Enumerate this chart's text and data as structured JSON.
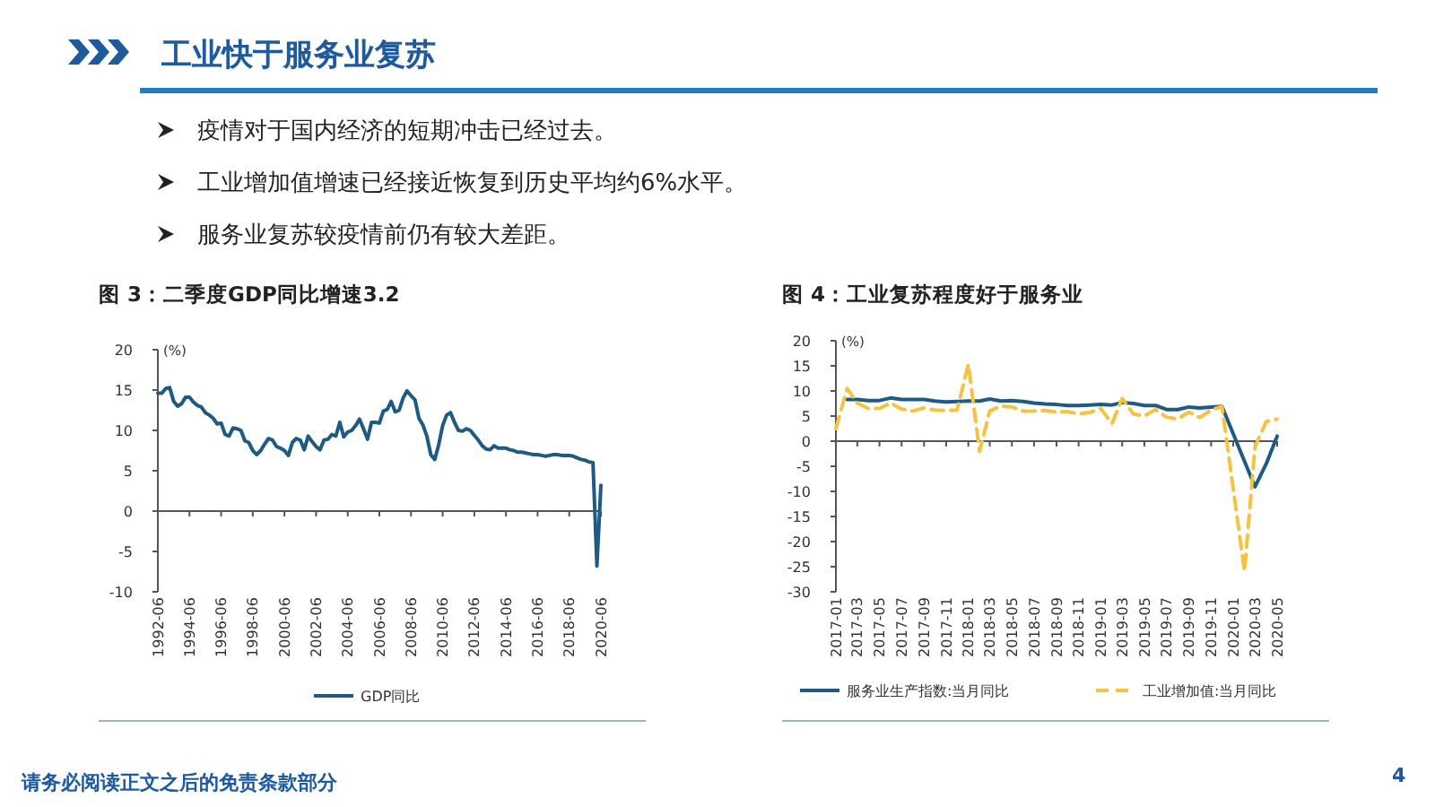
{
  "chart_data": [
    {
      "type": "line",
      "title": "图 3：二季度GDP同比增速3.2",
      "ylabel": "(%)",
      "annotations": [
        "工业快于服务业复苏",
        "疫情对于国内经济的短期冲击已经过去。",
        "工业增加值增速已经接近恢复到历史平均约6%水平。",
        "服务业复苏较疫情前仍有较大差距。",
        "请务必阅读正文之后的免责条款部分",
        "4"
      ],
      "x": [
        "1992-06",
        "1992-09",
        "1992-12",
        "1993-03",
        "1993-06",
        "1993-09",
        "1993-12",
        "1994-03",
        "1994-06",
        "1994-09",
        "1994-12",
        "1995-03",
        "1995-06",
        "1995-09",
        "1995-12",
        "1996-03",
        "1996-06",
        "1996-09",
        "1996-12",
        "1997-03",
        "1997-06",
        "1997-09",
        "1997-12",
        "1998-03",
        "1998-06",
        "1998-09",
        "1998-12",
        "1999-03",
        "1999-06",
        "1999-09",
        "1999-12",
        "2000-03",
        "2000-06",
        "2000-09",
        "2000-12",
        "2001-03",
        "2001-06",
        "2001-09",
        "2001-12",
        "2002-03",
        "2002-06",
        "2002-09",
        "2002-12",
        "2003-03",
        "2003-06",
        "2003-09",
        "2003-12",
        "2004-03",
        "2004-06",
        "2004-09",
        "2004-12",
        "2005-03",
        "2005-06",
        "2005-09",
        "2005-12",
        "2006-03",
        "2006-06",
        "2006-09",
        "2006-12",
        "2007-03",
        "2007-06",
        "2007-09",
        "2007-12",
        "2008-03",
        "2008-06",
        "2008-09",
        "2008-12",
        "2009-03",
        "2009-06",
        "2009-09",
        "2009-12",
        "2010-03",
        "2010-06",
        "2010-09",
        "2010-12",
        "2011-03",
        "2011-06",
        "2011-09",
        "2011-12",
        "2012-03",
        "2012-06",
        "2012-09",
        "2012-12",
        "2013-03",
        "2013-06",
        "2013-09",
        "2013-12",
        "2014-03",
        "2014-06",
        "2014-09",
        "2014-12",
        "2015-03",
        "2015-06",
        "2015-09",
        "2015-12",
        "2016-03",
        "2016-06",
        "2016-09",
        "2016-12",
        "2017-03",
        "2017-06",
        "2017-09",
        "2017-12",
        "2018-03",
        "2018-06",
        "2018-09",
        "2018-12",
        "2019-03",
        "2019-06",
        "2019-09",
        "2019-12",
        "2020-03",
        "2020-06"
      ],
      "series": [
        {
          "name": "GDP同比",
          "color": "#1f5a85",
          "values": [
            14.6,
            14.6,
            15.2,
            15.3,
            13.6,
            13.0,
            13.3,
            14.1,
            14.1,
            13.5,
            13.1,
            12.9,
            12.2,
            11.9,
            11.5,
            10.8,
            10.9,
            9.5,
            9.3,
            10.3,
            10.2,
            10.0,
            8.7,
            8.5,
            7.5,
            7.0,
            7.5,
            8.3,
            9.0,
            8.8,
            8.0,
            7.8,
            7.5,
            6.9,
            8.5,
            9.0,
            8.8,
            7.6,
            9.3,
            8.6,
            8.0,
            7.6,
            8.8,
            8.9,
            9.5,
            9.3,
            11.0,
            9.2,
            9.8,
            10.0,
            10.6,
            11.4,
            10.2,
            8.9,
            11.0,
            11.0,
            10.9,
            12.4,
            12.6,
            13.6,
            12.3,
            12.5,
            14.0,
            14.9,
            14.3,
            13.8,
            11.5,
            10.7,
            9.3,
            7.0,
            6.4,
            8.2,
            10.6,
            11.9,
            12.2,
            11.0,
            10.0,
            9.9,
            10.2,
            10.0,
            9.4,
            8.8,
            8.1,
            7.7,
            7.6,
            8.1,
            7.8,
            7.8,
            7.8,
            7.6,
            7.5,
            7.3,
            7.3,
            7.2,
            7.1,
            7.0,
            7.0,
            6.9,
            6.8,
            6.9,
            7.0,
            7.0,
            6.9,
            6.9,
            6.9,
            6.8,
            6.6,
            6.4,
            6.3,
            6.1,
            6.0,
            -6.8,
            3.2
          ]
        }
      ],
      "xlim": [
        "1992-06",
        "2020-06"
      ],
      "xticks": [
        "1992-06",
        "1994-06",
        "1996-06",
        "1998-06",
        "2000-06",
        "2002-06",
        "2004-06",
        "2006-06",
        "2008-06",
        "2010-06",
        "2012-06",
        "2014-06",
        "2016-06",
        "2018-06",
        "2020-06"
      ],
      "ylim": [
        -10,
        20
      ],
      "yticks": [
        -10,
        -5,
        0,
        5,
        10,
        15,
        20
      ],
      "legend": "bottom"
    },
    {
      "type": "line",
      "title": "图 4：工业复苏程度好于服务业",
      "ylabel": "(%)",
      "series": [
        {
          "name": "服务业生产指数:当月同比",
          "color": "#1f5a85",
          "line_style": "solid",
          "x": [
            "2017-02",
            "2017-03",
            "2017-04",
            "2017-05",
            "2017-06",
            "2017-07",
            "2017-08",
            "2017-09",
            "2017-10",
            "2017-11",
            "2017-12",
            "2018-01",
            "2018-02",
            "2018-03",
            "2018-04",
            "2018-05",
            "2018-06",
            "2018-07",
            "2018-08",
            "2018-09",
            "2018-10",
            "2018-11",
            "2018-12",
            "2019-01",
            "2019-02",
            "2019-03",
            "2019-04",
            "2019-05",
            "2019-06",
            "2019-07",
            "2019-08",
            "2019-09",
            "2019-10",
            "2019-11",
            "2019-12",
            "2020-03",
            "2020-04",
            "2020-05"
          ],
          "values": [
            8.3,
            8.3,
            8.1,
            8.1,
            8.6,
            8.3,
            8.3,
            8.3,
            8.0,
            7.8,
            7.9,
            8.0,
            8.0,
            8.4,
            8.0,
            8.1,
            7.9,
            7.6,
            7.4,
            7.3,
            7.1,
            7.1,
            7.2,
            7.3,
            7.2,
            7.7,
            7.5,
            7.1,
            7.1,
            6.3,
            6.3,
            6.8,
            6.6,
            6.8,
            6.9,
            -9.1,
            -4.5,
            1.0
          ]
        },
        {
          "name": "工业增加值:当月同比",
          "color": "#f5c342",
          "line_style": "dashed",
          "x": [
            "2017-01",
            "2017-02",
            "2017-03",
            "2017-04",
            "2017-05",
            "2017-06",
            "2017-07",
            "2017-08",
            "2017-09",
            "2017-10",
            "2017-11",
            "2017-12",
            "2018-01",
            "2018-02",
            "2018-03",
            "2018-04",
            "2018-05",
            "2018-06",
            "2018-07",
            "2018-08",
            "2018-09",
            "2018-10",
            "2018-11",
            "2018-12",
            "2019-01",
            "2019-02",
            "2019-03",
            "2019-04",
            "2019-05",
            "2019-06",
            "2019-07",
            "2019-08",
            "2019-09",
            "2019-10",
            "2019-11",
            "2019-12",
            "2020-02",
            "2020-03",
            "2020-04",
            "2020-05"
          ],
          "values": [
            2.5,
            10.5,
            7.6,
            6.5,
            6.5,
            7.6,
            6.4,
            6.0,
            6.6,
            6.2,
            6.1,
            6.2,
            15.3,
            -2.0,
            6.0,
            7.0,
            6.8,
            6.0,
            6.0,
            6.1,
            5.8,
            5.9,
            5.4,
            5.7,
            6.5,
            3.5,
            8.5,
            5.4,
            5.0,
            6.3,
            4.8,
            4.4,
            5.8,
            4.7,
            6.2,
            6.9,
            -25.9,
            -1.1,
            3.9,
            4.4
          ]
        }
      ],
      "xlim": [
        "2017-01",
        "2020-05"
      ],
      "xticks": [
        "2017-01",
        "2017-03",
        "2017-05",
        "2017-07",
        "2017-09",
        "2017-11",
        "2018-01",
        "2018-03",
        "2018-05",
        "2018-07",
        "2018-09",
        "2018-11",
        "2019-01",
        "2019-03",
        "2019-05",
        "2019-07",
        "2019-09",
        "2019-11",
        "2020-01",
        "2020-03",
        "2020-05"
      ],
      "ylim": [
        -30,
        20
      ],
      "yticks": [
        -30,
        -25,
        -20,
        -15,
        -10,
        -5,
        0,
        5,
        10,
        15,
        20
      ],
      "legend": "bottom"
    }
  ]
}
